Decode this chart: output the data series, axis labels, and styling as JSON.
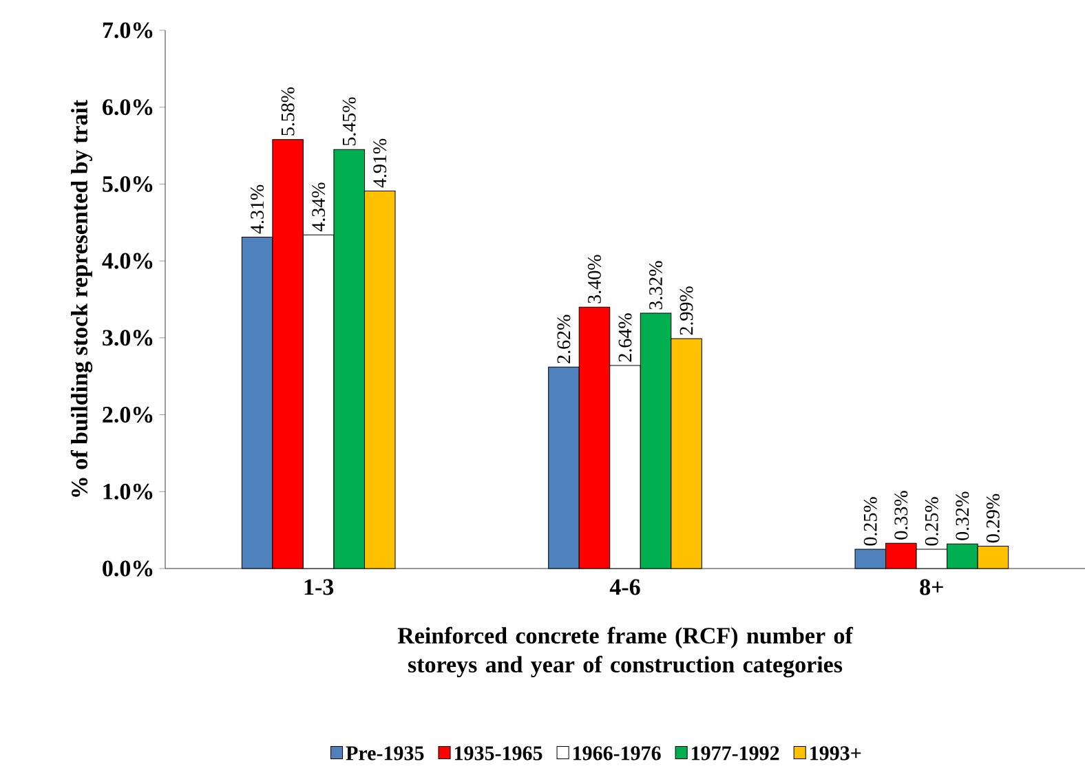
{
  "chart_data": {
    "type": "bar",
    "xlabel": "Reinforced concrete frame (RCF) number of storeys and year of construction categories",
    "ylabel": "% of building stock represented by trait",
    "categories": [
      "1-3",
      "4-6",
      "8+"
    ],
    "series": [
      {
        "name": "Pre-1935",
        "color": "#4f81bd",
        "values": [
          4.31,
          2.62,
          0.25
        ],
        "value_labels": [
          "4.31%",
          "2.62%",
          "0.25%"
        ]
      },
      {
        "name": "1935-1965",
        "color": "#ff0000",
        "values": [
          5.58,
          3.4,
          0.33
        ],
        "value_labels": [
          "5.58%",
          "3.40%",
          "0.33%"
        ]
      },
      {
        "name": "1966-1976",
        "color": "#ffffff",
        "values": [
          4.34,
          2.64,
          0.25
        ],
        "value_labels": [
          "4.34%",
          "2.64%",
          "0.25%"
        ]
      },
      {
        "name": "1977-1992",
        "color": "#00b050",
        "values": [
          5.45,
          3.32,
          0.32
        ],
        "value_labels": [
          "5.45%",
          "3.32%",
          "0.32%"
        ]
      },
      {
        "name": "1993+",
        "color": "#ffc000",
        "values": [
          4.91,
          2.99,
          0.29
        ],
        "value_labels": [
          "4.91%",
          "2.99%",
          "0.29%"
        ]
      }
    ],
    "ylim": [
      0,
      7
    ],
    "yticks": [
      {
        "value": 0,
        "label": "0.0%"
      },
      {
        "value": 1,
        "label": "1.0%"
      },
      {
        "value": 2,
        "label": "2.0%"
      },
      {
        "value": 3,
        "label": "3.0%"
      },
      {
        "value": 4,
        "label": "4.0%"
      },
      {
        "value": 5,
        "label": "5.0%"
      },
      {
        "value": 6,
        "label": "6.0%"
      },
      {
        "value": 7,
        "label": "7.0%"
      }
    ],
    "legend": "bottom"
  }
}
